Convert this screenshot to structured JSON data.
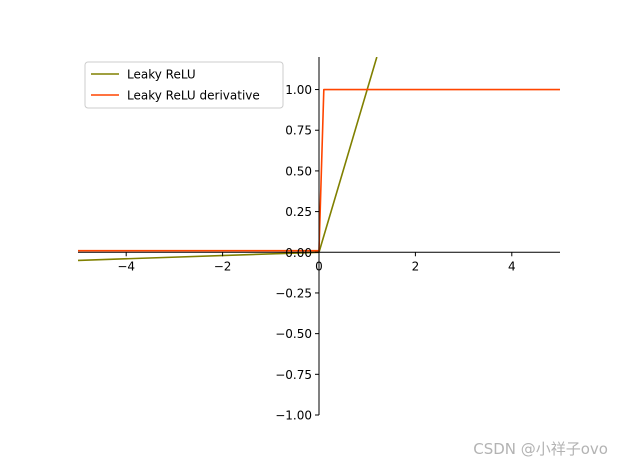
{
  "chart_data": {
    "type": "line",
    "xlim": [
      -5,
      5
    ],
    "ylim": [
      -1.0,
      1.2
    ],
    "x_ticks": [
      -4,
      -2,
      0,
      2,
      4
    ],
    "x_tick_labels": [
      "−4",
      "−2",
      "0",
      "2",
      "4"
    ],
    "y_ticks": [
      1.0,
      0.75,
      0.5,
      0.25,
      0.0,
      -0.25,
      -0.5,
      -0.75,
      -1.0
    ],
    "y_tick_labels": [
      "1.00",
      "0.75",
      "0.50",
      "0.25",
      "0.00",
      "−0.25",
      "−0.50",
      "−0.75",
      "−1.00"
    ],
    "spines": "centered",
    "grid": false,
    "legend_position": "top-left",
    "series": [
      {
        "name": "Leaky ReLU",
        "color": "#808000",
        "x": [
          -5,
          0,
          1.2
        ],
        "y": [
          -0.05,
          0,
          1.2
        ]
      },
      {
        "name": "Leaky ReLU derivative",
        "color": "#ff4500",
        "x": [
          -5,
          0,
          0.1,
          5
        ],
        "y": [
          0.01,
          0.01,
          1.0,
          1.0
        ]
      }
    ]
  },
  "watermark": "CSDN @小祥子ovo"
}
